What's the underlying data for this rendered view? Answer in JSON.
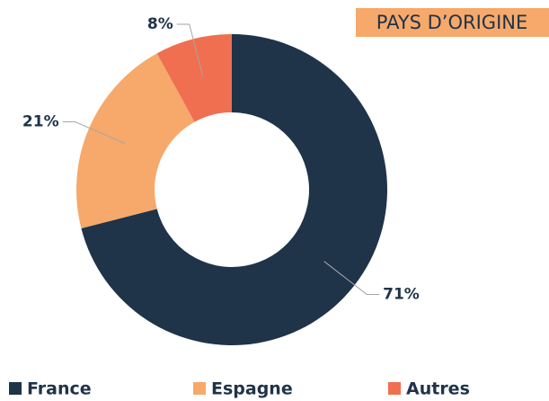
{
  "chart_data": {
    "type": "donut",
    "title": "PAYS D’ORIGINE",
    "categories": [
      "France",
      "Espagne",
      "Autres"
    ],
    "values": [
      71,
      21,
      8
    ],
    "value_labels": [
      "71%",
      "21%",
      "8%"
    ],
    "colors": [
      "#1f3349",
      "#f6a96b",
      "#ef6f50"
    ]
  }
}
